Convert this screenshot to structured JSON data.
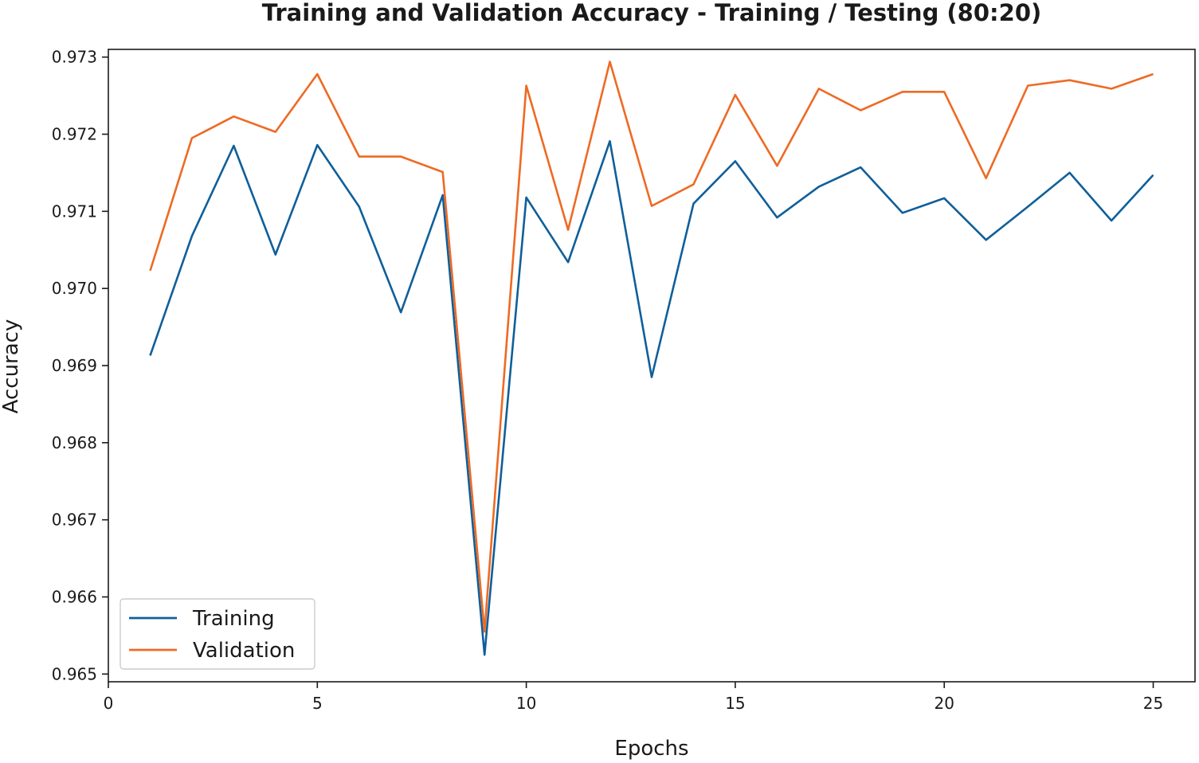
{
  "chart_data": {
    "type": "line",
    "title": "Training and Validation Accuracy - Training / Testing (80:20)",
    "xlabel": "Epochs",
    "ylabel": "Accuracy",
    "xlim": [
      0,
      26
    ],
    "ylim": [
      0.9649,
      0.9731
    ],
    "xticks": [
      0,
      5,
      10,
      15,
      20,
      25
    ],
    "yticks": [
      0.965,
      0.966,
      0.967,
      0.968,
      0.969,
      0.97,
      0.971,
      0.972,
      0.973
    ],
    "x": [
      1,
      2,
      3,
      4,
      5,
      6,
      7,
      8,
      9,
      10,
      11,
      12,
      13,
      14,
      15,
      16,
      17,
      18,
      19,
      20,
      21,
      22,
      23,
      24,
      25
    ],
    "series": [
      {
        "name": "Training",
        "color": "#0f5f9a",
        "values": [
          0.96913,
          0.97068,
          0.97185,
          0.97044,
          0.97186,
          0.97106,
          0.96969,
          0.97121,
          0.96525,
          0.97118,
          0.97034,
          0.97191,
          0.96885,
          0.9711,
          0.97165,
          0.97092,
          0.97132,
          0.97157,
          0.97098,
          0.97117,
          0.97063,
          0.97106,
          0.9715,
          0.97088,
          0.97147
        ]
      },
      {
        "name": "Validation",
        "color": "#ee6a24",
        "values": [
          0.97023,
          0.97195,
          0.97223,
          0.97203,
          0.97278,
          0.97171,
          0.97171,
          0.97151,
          0.96555,
          0.97263,
          0.97076,
          0.97294,
          0.97107,
          0.97135,
          0.97251,
          0.97159,
          0.97259,
          0.97231,
          0.97255,
          0.97255,
          0.97143,
          0.97263,
          0.9727,
          0.97259,
          0.97278
        ]
      }
    ],
    "ytick_labels": [
      "0.965",
      "0.966",
      "0.967",
      "0.968",
      "0.969",
      "0.970",
      "0.971",
      "0.972",
      "0.973"
    ],
    "xtick_labels": [
      "0",
      "5",
      "10",
      "15",
      "20",
      "25"
    ],
    "grid": false,
    "legend_position": "lower-left"
  }
}
